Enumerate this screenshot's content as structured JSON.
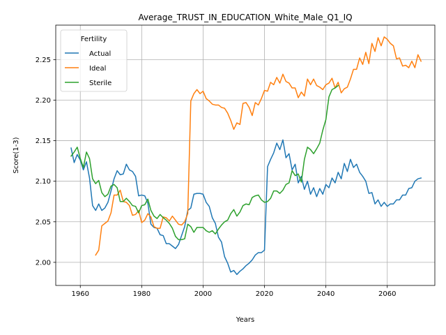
{
  "chart_data": {
    "type": "line",
    "title": "Average_TRUST_IN_EDUCATION_White_Male_Q1_IQ",
    "xlabel": "Years",
    "ylabel": "Score(1-3)",
    "xlim": [
      1952,
      2075.5
    ],
    "ylim": [
      1.9715,
      2.2925
    ],
    "xticks": [
      1960,
      1980,
      2000,
      2020,
      2040,
      2060
    ],
    "yticks": [
      2.0,
      2.05,
      2.1,
      2.15,
      2.2,
      2.25
    ],
    "ytick_labels": [
      "2.00",
      "2.05",
      "2.10",
      "2.15",
      "2.20",
      "2.25"
    ],
    "grid": true,
    "legend": {
      "title": "Fertility",
      "position": "top-left"
    },
    "series": [
      {
        "name": "Actual",
        "color": "#1f77b4",
        "points": [
          [
            1957,
            2.141
          ],
          [
            1958,
            2.123
          ],
          [
            1959,
            2.133
          ],
          [
            1960,
            2.126
          ],
          [
            1961,
            2.114
          ],
          [
            1962,
            2.124
          ],
          [
            1963,
            2.104
          ],
          [
            1964,
            2.07
          ],
          [
            1965,
            2.064
          ],
          [
            1966,
            2.072
          ],
          [
            1967,
            2.064
          ],
          [
            1968,
            2.067
          ],
          [
            1969,
            2.074
          ],
          [
            1970,
            2.088
          ],
          [
            1971,
            2.103
          ],
          [
            1972,
            2.113
          ],
          [
            1973,
            2.108
          ],
          [
            1974,
            2.109
          ],
          [
            1975,
            2.121
          ],
          [
            1976,
            2.114
          ],
          [
            1977,
            2.112
          ],
          [
            1978,
            2.106
          ],
          [
            1979,
            2.082
          ],
          [
            1980,
            2.083
          ],
          [
            1981,
            2.082
          ],
          [
            1982,
            2.073
          ],
          [
            1983,
            2.047
          ],
          [
            1984,
            2.043
          ],
          [
            1985,
            2.042
          ],
          [
            1986,
            2.034
          ],
          [
            1987,
            2.033
          ],
          [
            1988,
            2.023
          ],
          [
            1989,
            2.023
          ],
          [
            1990,
            2.02
          ],
          [
            1991,
            2.017
          ],
          [
            1992,
            2.022
          ],
          [
            1993,
            2.033
          ],
          [
            1994,
            2.044
          ],
          [
            1995,
            2.064
          ],
          [
            1996,
            2.067
          ],
          [
            1997,
            2.084
          ],
          [
            1998,
            2.085
          ],
          [
            1999,
            2.085
          ],
          [
            2000,
            2.084
          ],
          [
            2001,
            2.074
          ],
          [
            2002,
            2.069
          ],
          [
            2003,
            2.055
          ],
          [
            2004,
            2.048
          ],
          [
            2005,
            2.031
          ],
          [
            2006,
            2.025
          ],
          [
            2007,
            2.007
          ],
          [
            2008,
            1.999
          ],
          [
            2009,
            1.988
          ],
          [
            2010,
            1.99
          ],
          [
            2011,
            1.985
          ],
          [
            2012,
            1.989
          ],
          [
            2013,
            1.992
          ],
          [
            2014,
            1.996
          ],
          [
            2015,
            1.999
          ],
          [
            2016,
            2.003
          ],
          [
            2017,
            2.009
          ],
          [
            2018,
            2.012
          ],
          [
            2019,
            2.012
          ],
          [
            2020,
            2.015
          ],
          [
            2021,
            2.118
          ],
          [
            2022,
            2.127
          ],
          [
            2023,
            2.135
          ],
          [
            2024,
            2.147
          ],
          [
            2025,
            2.139
          ],
          [
            2026,
            2.151
          ],
          [
            2027,
            2.129
          ],
          [
            2028,
            2.134
          ],
          [
            2029,
            2.114
          ],
          [
            2030,
            2.121
          ],
          [
            2031,
            2.098
          ],
          [
            2032,
            2.106
          ],
          [
            2033,
            2.09
          ],
          [
            2034,
            2.1
          ],
          [
            2035,
            2.084
          ],
          [
            2036,
            2.092
          ],
          [
            2037,
            2.081
          ],
          [
            2038,
            2.091
          ],
          [
            2039,
            2.084
          ],
          [
            2040,
            2.096
          ],
          [
            2041,
            2.092
          ],
          [
            2042,
            2.104
          ],
          [
            2043,
            2.098
          ],
          [
            2044,
            2.111
          ],
          [
            2045,
            2.103
          ],
          [
            2046,
            2.122
          ],
          [
            2047,
            2.112
          ],
          [
            2048,
            2.127
          ],
          [
            2049,
            2.117
          ],
          [
            2050,
            2.121
          ],
          [
            2051,
            2.111
          ],
          [
            2052,
            2.106
          ],
          [
            2053,
            2.1
          ],
          [
            2054,
            2.085
          ],
          [
            2055,
            2.086
          ],
          [
            2056,
            2.072
          ],
          [
            2057,
            2.077
          ],
          [
            2058,
            2.069
          ],
          [
            2059,
            2.074
          ],
          [
            2060,
            2.069
          ],
          [
            2061,
            2.072
          ],
          [
            2062,
            2.072
          ],
          [
            2063,
            2.077
          ],
          [
            2064,
            2.077
          ],
          [
            2065,
            2.083
          ],
          [
            2066,
            2.083
          ],
          [
            2067,
            2.091
          ],
          [
            2068,
            2.092
          ],
          [
            2069,
            2.1
          ],
          [
            2070,
            2.103
          ],
          [
            2071,
            2.104
          ]
        ]
      },
      {
        "name": "Ideal",
        "color": "#ff7f0e",
        "points": [
          [
            1965,
            2.009
          ],
          [
            1966,
            2.015
          ],
          [
            1967,
            2.045
          ],
          [
            1968,
            2.048
          ],
          [
            1969,
            2.051
          ],
          [
            1970,
            2.061
          ],
          [
            1971,
            2.083
          ],
          [
            1972,
            2.083
          ],
          [
            1973,
            2.089
          ],
          [
            1974,
            2.075
          ],
          [
            1975,
            2.074
          ],
          [
            1976,
            2.07
          ],
          [
            1977,
            2.058
          ],
          [
            1978,
            2.059
          ],
          [
            1979,
            2.064
          ],
          [
            1980,
            2.049
          ],
          [
            1981,
            2.052
          ],
          [
            1982,
            2.06
          ],
          [
            1983,
            2.056
          ],
          [
            1984,
            2.044
          ],
          [
            1985,
            2.042
          ],
          [
            1986,
            2.042
          ],
          [
            1987,
            2.056
          ],
          [
            1988,
            2.055
          ],
          [
            1989,
            2.051
          ],
          [
            1990,
            2.057
          ],
          [
            1991,
            2.052
          ],
          [
            1992,
            2.047
          ],
          [
            1993,
            2.046
          ],
          [
            1994,
            2.05
          ],
          [
            1995,
            2.06
          ],
          [
            1996,
            2.199
          ],
          [
            1997,
            2.208
          ],
          [
            1998,
            2.213
          ],
          [
            1999,
            2.208
          ],
          [
            2000,
            2.211
          ],
          [
            2001,
            2.202
          ],
          [
            2002,
            2.199
          ],
          [
            2003,
            2.195
          ],
          [
            2004,
            2.194
          ],
          [
            2005,
            2.194
          ],
          [
            2006,
            2.191
          ],
          [
            2007,
            2.19
          ],
          [
            2008,
            2.184
          ],
          [
            2009,
            2.175
          ],
          [
            2010,
            2.164
          ],
          [
            2011,
            2.172
          ],
          [
            2012,
            2.17
          ],
          [
            2013,
            2.196
          ],
          [
            2014,
            2.197
          ],
          [
            2015,
            2.191
          ],
          [
            2016,
            2.181
          ],
          [
            2017,
            2.197
          ],
          [
            2018,
            2.194
          ],
          [
            2019,
            2.202
          ],
          [
            2020,
            2.212
          ],
          [
            2021,
            2.211
          ],
          [
            2022,
            2.222
          ],
          [
            2023,
            2.219
          ],
          [
            2024,
            2.228
          ],
          [
            2025,
            2.221
          ],
          [
            2026,
            2.232
          ],
          [
            2027,
            2.223
          ],
          [
            2028,
            2.221
          ],
          [
            2029,
            2.215
          ],
          [
            2030,
            2.215
          ],
          [
            2031,
            2.203
          ],
          [
            2032,
            2.21
          ],
          [
            2033,
            2.205
          ],
          [
            2034,
            2.226
          ],
          [
            2035,
            2.219
          ],
          [
            2036,
            2.226
          ],
          [
            2037,
            2.218
          ],
          [
            2038,
            2.216
          ],
          [
            2039,
            2.213
          ],
          [
            2040,
            2.219
          ],
          [
            2041,
            2.221
          ],
          [
            2042,
            2.227
          ],
          [
            2043,
            2.215
          ],
          [
            2044,
            2.222
          ],
          [
            2045,
            2.209
          ],
          [
            2046,
            2.214
          ],
          [
            2047,
            2.216
          ],
          [
            2048,
            2.226
          ],
          [
            2049,
            2.238
          ],
          [
            2050,
            2.238
          ],
          [
            2051,
            2.252
          ],
          [
            2052,
            2.244
          ],
          [
            2053,
            2.259
          ],
          [
            2054,
            2.245
          ],
          [
            2055,
            2.27
          ],
          [
            2056,
            2.26
          ],
          [
            2057,
            2.277
          ],
          [
            2058,
            2.267
          ],
          [
            2059,
            2.278
          ],
          [
            2060,
            2.275
          ],
          [
            2061,
            2.27
          ],
          [
            2062,
            2.267
          ],
          [
            2063,
            2.251
          ],
          [
            2064,
            2.252
          ],
          [
            2065,
            2.242
          ],
          [
            2066,
            2.243
          ],
          [
            2067,
            2.24
          ],
          [
            2068,
            2.248
          ],
          [
            2069,
            2.24
          ],
          [
            2070,
            2.256
          ],
          [
            2071,
            2.248
          ]
        ]
      },
      {
        "name": "Sterile",
        "color": "#2ca02c",
        "points": [
          [
            1957,
            2.131
          ],
          [
            1958,
            2.136
          ],
          [
            1959,
            2.142
          ],
          [
            1960,
            2.128
          ],
          [
            1961,
            2.117
          ],
          [
            1962,
            2.136
          ],
          [
            1963,
            2.128
          ],
          [
            1964,
            2.103
          ],
          [
            1965,
            2.097
          ],
          [
            1966,
            2.101
          ],
          [
            1967,
            2.086
          ],
          [
            1968,
            2.081
          ],
          [
            1969,
            2.084
          ],
          [
            1970,
            2.094
          ],
          [
            1971,
            2.096
          ],
          [
            1972,
            2.092
          ],
          [
            1973,
            2.075
          ],
          [
            1974,
            2.075
          ],
          [
            1975,
            2.079
          ],
          [
            1976,
            2.075
          ],
          [
            1977,
            2.07
          ],
          [
            1978,
            2.069
          ],
          [
            1979,
            2.061
          ],
          [
            1980,
            2.07
          ],
          [
            1981,
            2.071
          ],
          [
            1982,
            2.078
          ],
          [
            1983,
            2.064
          ],
          [
            1984,
            2.057
          ],
          [
            1985,
            2.054
          ],
          [
            1986,
            2.059
          ],
          [
            1987,
            2.055
          ],
          [
            1988,
            2.052
          ],
          [
            1989,
            2.048
          ],
          [
            1990,
            2.042
          ],
          [
            1991,
            2.032
          ],
          [
            1992,
            2.028
          ],
          [
            1993,
            2.028
          ],
          [
            1994,
            2.029
          ],
          [
            1995,
            2.047
          ],
          [
            1996,
            2.044
          ],
          [
            1997,
            2.037
          ],
          [
            1998,
            2.043
          ],
          [
            1999,
            2.043
          ],
          [
            2000,
            2.043
          ],
          [
            2001,
            2.039
          ],
          [
            2002,
            2.037
          ],
          [
            2003,
            2.039
          ],
          [
            2004,
            2.035
          ],
          [
            2005,
            2.041
          ],
          [
            2006,
            2.046
          ],
          [
            2007,
            2.05
          ],
          [
            2008,
            2.052
          ],
          [
            2009,
            2.06
          ],
          [
            2010,
            2.065
          ],
          [
            2011,
            2.057
          ],
          [
            2012,
            2.062
          ],
          [
            2013,
            2.07
          ],
          [
            2014,
            2.072
          ],
          [
            2015,
            2.071
          ],
          [
            2016,
            2.08
          ],
          [
            2017,
            2.082
          ],
          [
            2018,
            2.083
          ],
          [
            2019,
            2.077
          ],
          [
            2020,
            2.074
          ],
          [
            2021,
            2.075
          ],
          [
            2022,
            2.079
          ],
          [
            2023,
            2.088
          ],
          [
            2024,
            2.088
          ],
          [
            2025,
            2.085
          ],
          [
            2026,
            2.089
          ],
          [
            2027,
            2.096
          ],
          [
            2028,
            2.098
          ],
          [
            2029,
            2.113
          ],
          [
            2030,
            2.107
          ],
          [
            2031,
            2.109
          ],
          [
            2032,
            2.099
          ],
          [
            2033,
            2.127
          ],
          [
            2034,
            2.142
          ],
          [
            2035,
            2.139
          ],
          [
            2036,
            2.134
          ],
          [
            2037,
            2.14
          ],
          [
            2038,
            2.147
          ],
          [
            2039,
            2.163
          ],
          [
            2040,
            2.176
          ],
          [
            2041,
            2.204
          ],
          [
            2042,
            2.213
          ],
          [
            2043,
            2.215
          ],
          [
            2044,
            2.218
          ]
        ]
      }
    ]
  }
}
